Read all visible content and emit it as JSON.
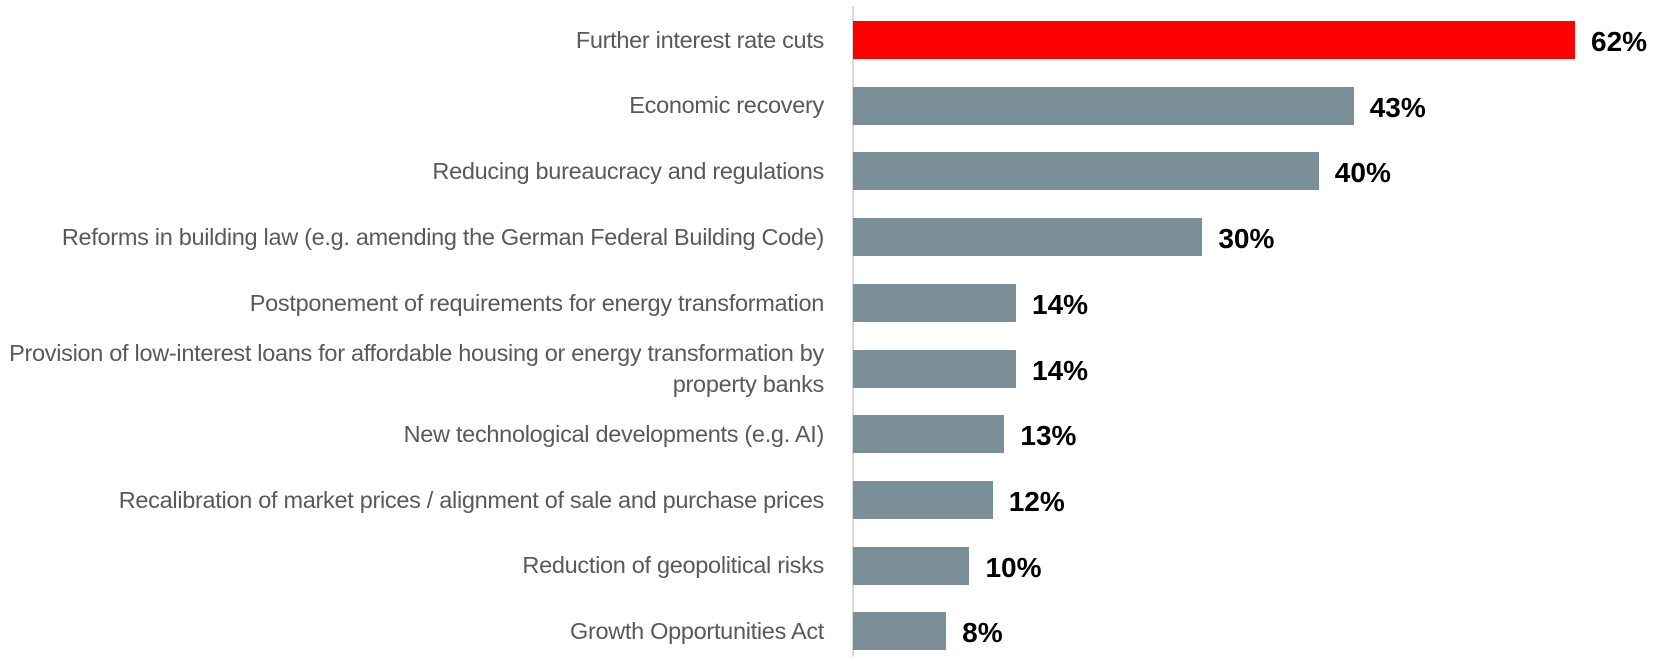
{
  "chart_data": {
    "type": "bar",
    "orientation": "horizontal",
    "categories": [
      "Further interest rate cuts",
      "Economic recovery",
      "Reducing bureaucracy and regulations",
      "Reforms in building law (e.g. amending the German Federal Building Code)",
      "Postponement of requirements for energy transformation",
      "Provision of low-interest loans for affordable housing or energy transformation by property banks",
      "New technological developments (e.g. AI)",
      "Recalibration of market prices / alignment of sale and purchase prices",
      "Reduction of geopolitical risks",
      "Growth Opportunities Act"
    ],
    "values": [
      62,
      43,
      40,
      30,
      14,
      14,
      13,
      12,
      10,
      8
    ],
    "value_labels": [
      "62%",
      "43%",
      "40%",
      "30%",
      "14%",
      "14%",
      "13%",
      "12%",
      "10%",
      "8%"
    ],
    "colors": [
      "#ff0000",
      "#7b8f99",
      "#7b8f99",
      "#7b8f99",
      "#7b8f99",
      "#7b8f99",
      "#7b8f99",
      "#7b8f99",
      "#7b8f99",
      "#7b8f99"
    ]
  }
}
